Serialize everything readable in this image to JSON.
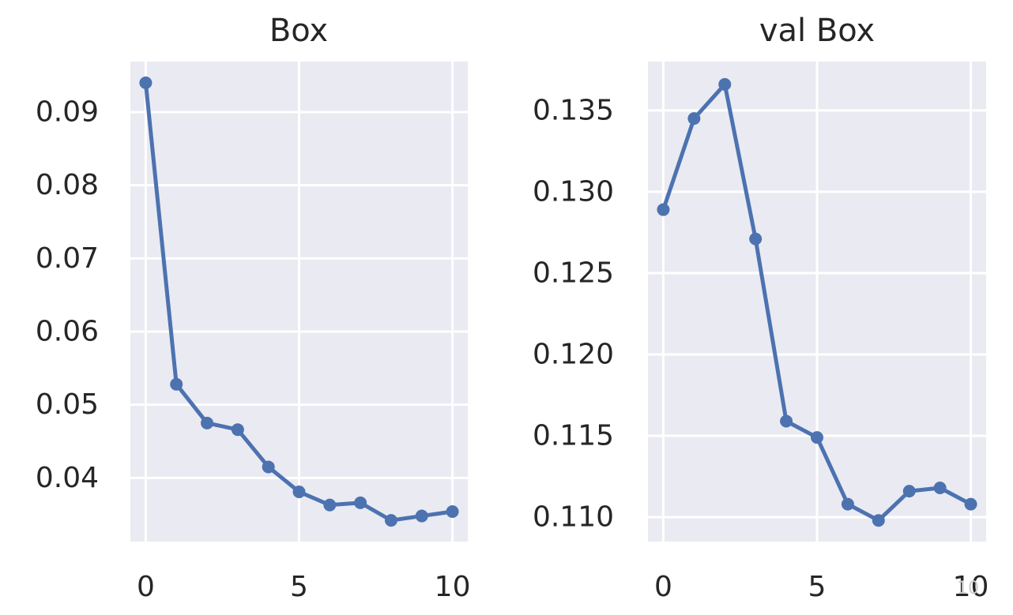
{
  "chart_data": [
    {
      "type": "line",
      "title": "Box",
      "xlabel": "",
      "ylabel": "",
      "x": [
        0,
        1,
        2,
        3,
        4,
        5,
        6,
        7,
        8,
        9,
        10
      ],
      "series": [
        {
          "values": [
            0.094,
            0.0528,
            0.0475,
            0.0466,
            0.0415,
            0.0381,
            0.0363,
            0.0366,
            0.0342,
            0.0348,
            0.0354
          ]
        }
      ],
      "xticks": [
        0,
        5,
        10
      ],
      "yticks": [
        0.04,
        0.05,
        0.06,
        0.07,
        0.08,
        0.09
      ],
      "xtick_labels": [
        "0",
        "5",
        "10"
      ],
      "ytick_labels": [
        "0.04",
        "0.05",
        "0.06",
        "0.07",
        "0.08",
        "0.09"
      ],
      "xlim": [
        -0.5,
        10.5
      ],
      "ylim": [
        0.0313,
        0.0969
      ],
      "grid": true,
      "color": "#4c72b0"
    },
    {
      "type": "line",
      "title": "val Box",
      "xlabel": "",
      "ylabel": "",
      "x": [
        0,
        1,
        2,
        3,
        4,
        5,
        6,
        7,
        8,
        9,
        10
      ],
      "series": [
        {
          "values": [
            0.1289,
            0.1345,
            0.1366,
            0.1271,
            0.1159,
            0.1149,
            0.1108,
            0.1098,
            0.1116,
            0.1118,
            0.1108
          ]
        }
      ],
      "xticks": [
        0,
        5,
        10
      ],
      "yticks": [
        0.11,
        0.115,
        0.12,
        0.125,
        0.13,
        0.135
      ],
      "xtick_labels": [
        "0",
        "5",
        "10"
      ],
      "ytick_labels": [
        "0.110",
        "0.115",
        "0.120",
        "0.125",
        "0.130",
        "0.135"
      ],
      "xlim": [
        -0.5,
        10.5
      ],
      "ylim": [
        0.1085,
        0.138
      ],
      "grid": true,
      "color": "#4c72b0"
    }
  ],
  "watermark": "10"
}
